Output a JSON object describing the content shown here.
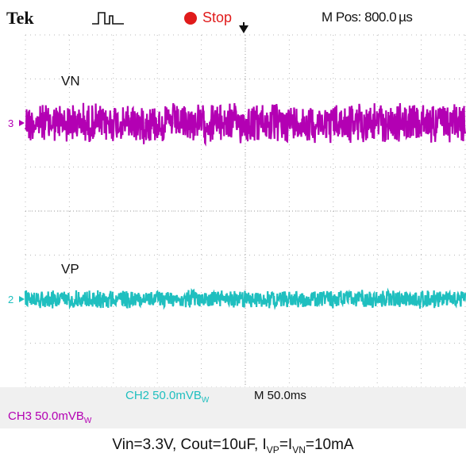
{
  "header": {
    "brand": "Tek",
    "acq_state": "Stop",
    "m_pos": "M Pos: 800.0 µs"
  },
  "status": {
    "ch2": "CH2  50.0mVB",
    "ch2_bw": "W",
    "timebase": "M 50.0ms",
    "ch3": "CH3  50.0mVB",
    "ch3_bw": "W"
  },
  "caption": {
    "prefix": "Vin=3.3V, Cout=10uF, I",
    "sub1": "VP",
    "mid": "=I",
    "sub2": "VN",
    "suffix": "=10mA"
  },
  "colors": {
    "ch3": "#b300b3",
    "ch2": "#1fbfbf",
    "stop": "#e01b1b",
    "grid": "#b8b8b8"
  },
  "chart_data": {
    "type": "line",
    "x_divisions": 10,
    "y_divisions": 8,
    "grid": true,
    "series": [
      {
        "name": "VN",
        "channel_marker": "3",
        "color": "#b300b3",
        "center_div": 6.0,
        "amplitude_div": 1.0,
        "style": "noise"
      },
      {
        "name": "VP",
        "channel_marker": "2",
        "color": "#1fbfbf",
        "center_div": 2.0,
        "amplitude_div": 0.45,
        "style": "noise"
      }
    ]
  }
}
